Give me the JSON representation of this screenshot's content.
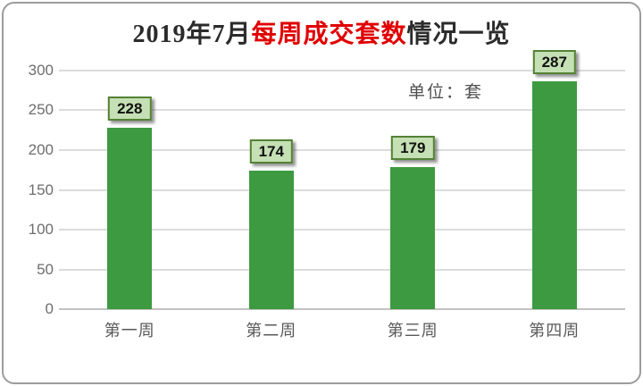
{
  "title": {
    "prefix": "2019年7月",
    "highlight": "每周成交套数",
    "suffix": "情况一览",
    "text_color": "#2b2b2b",
    "highlight_color": "#e00000"
  },
  "unit_label": "单位：套",
  "chart_data": {
    "type": "bar",
    "title": "2019年7月每周成交套数情况一览",
    "categories": [
      "第一周",
      "第二周",
      "第三周",
      "第四周"
    ],
    "values": [
      228,
      174,
      179,
      287
    ],
    "data_labels": [
      "228",
      "174",
      "179",
      "287"
    ],
    "xlabel": "",
    "ylabel": "",
    "ylim": [
      0,
      300
    ],
    "yticks": [
      0,
      50,
      100,
      150,
      200,
      250,
      300
    ],
    "grid": true,
    "legend": "none",
    "annotation": "单位：套",
    "bar_color": "#3d9a41",
    "label_box_fill": "#c5e0b4",
    "label_box_border": "#538135",
    "gridline_color": "#dcdcdc",
    "axis_text_color": "#6e6e6e"
  },
  "frame": {
    "border_color": "#9c9c9c",
    "background": "#ffffff"
  }
}
